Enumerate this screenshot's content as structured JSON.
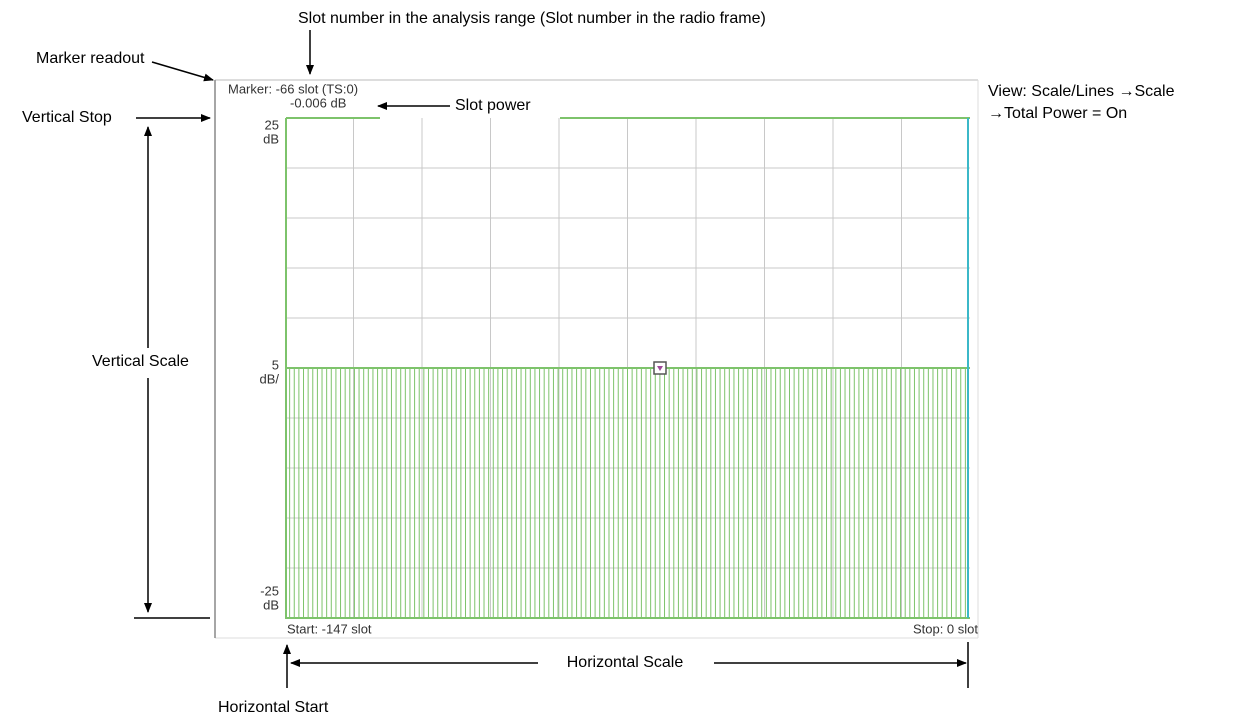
{
  "annotations": {
    "slot_number": "Slot number in the analysis range (Slot number in the radio frame)",
    "marker_readout": "Marker readout",
    "vertical_stop": "Vertical Stop",
    "slot_power": "Slot power",
    "view_line1": "View: Scale/Lines →Scale",
    "view_line2": "→Total Power = On",
    "vertical_scale": "Vertical Scale",
    "horizontal_scale": "Horizontal Scale",
    "horizontal_start": "Horizontal Start"
  },
  "display": {
    "marker": "Marker: -66 slot (TS:0)",
    "marker_value": "-0.006 dB",
    "top_value": "25",
    "top_unit": "dB",
    "scale_value": "5",
    "scale_unit": "dB/",
    "bottom_value": "-25",
    "bottom_unit": "dB",
    "start": "Start: -147 slot",
    "stop": "Stop: 0 slot"
  }
}
